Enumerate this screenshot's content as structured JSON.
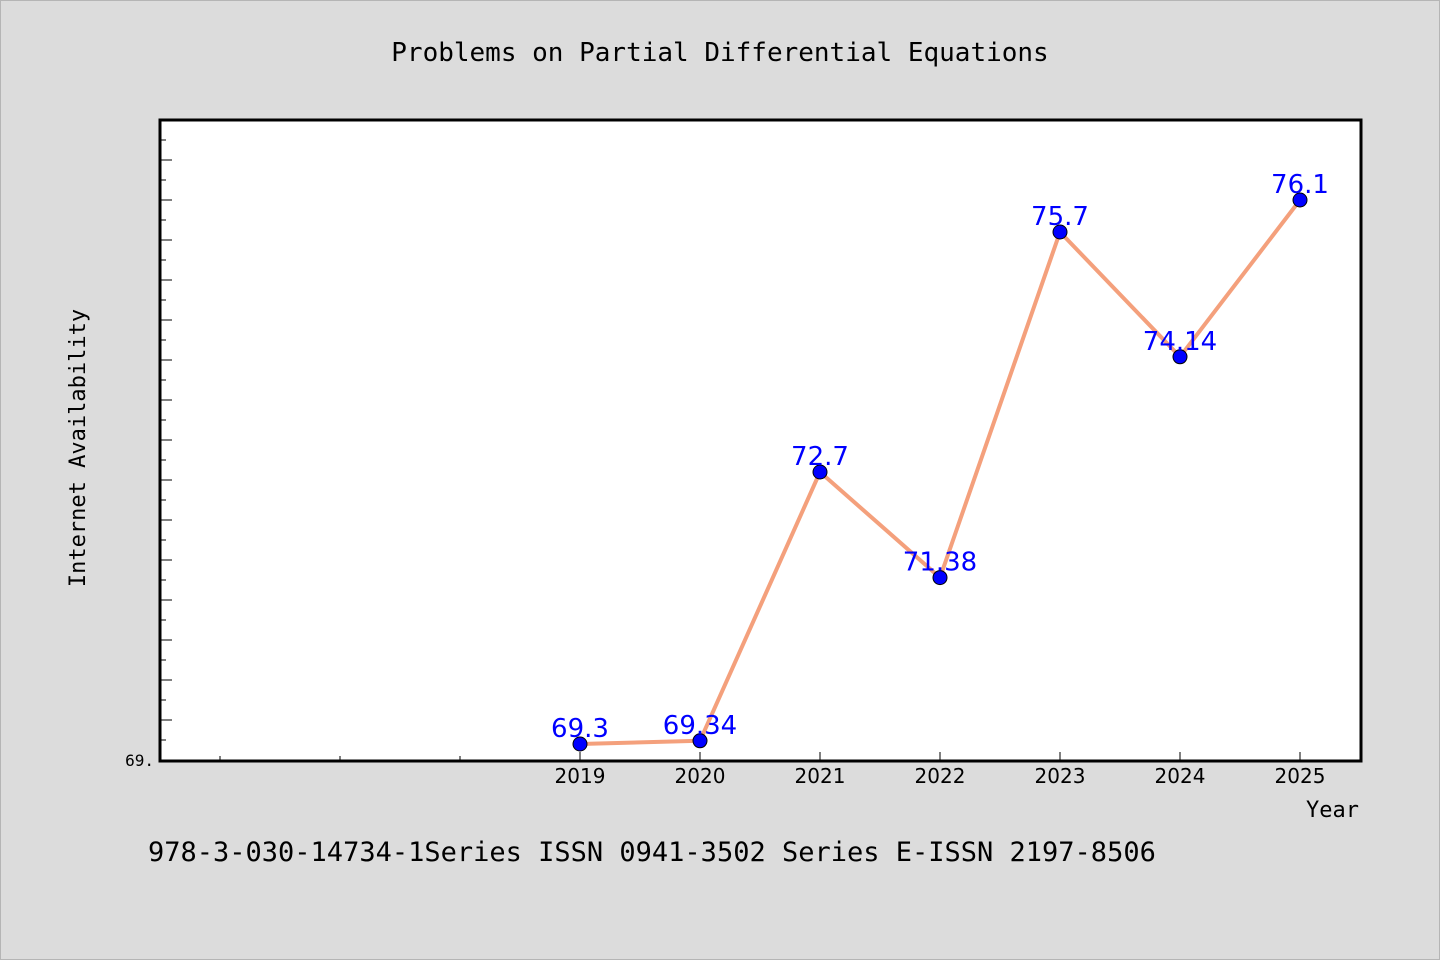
{
  "chart_data": {
    "type": "line",
    "title": "Problems on Partial Differential Equations",
    "xlabel": "Year",
    "ylabel": "Internet Availability",
    "categories": [
      "2019",
      "2020",
      "2021",
      "2022",
      "2023",
      "2024",
      "2025"
    ],
    "series": [
      {
        "values": [
          69.3,
          69.34,
          72.7,
          71.38,
          75.7,
          74.14,
          76.1
        ],
        "data_labels": [
          "69.3",
          "69.34",
          "72.7",
          "71.38",
          "75.7",
          "74.14",
          "76.1"
        ]
      }
    ],
    "ylim": [
      69.1,
      77.1
    ],
    "y_tick_label": "69.",
    "grid": false,
    "legend": "none",
    "footnote": "978-3-030-14734-1Series ISSN 0941-3502 Series E-ISSN 2197-8506",
    "colors": {
      "background": "#dcdcdc",
      "plot_area": "#ffffff",
      "line": "#f4a07c",
      "marker": "#0000ff",
      "data_label": "#0000ff",
      "text": "#000000"
    }
  }
}
